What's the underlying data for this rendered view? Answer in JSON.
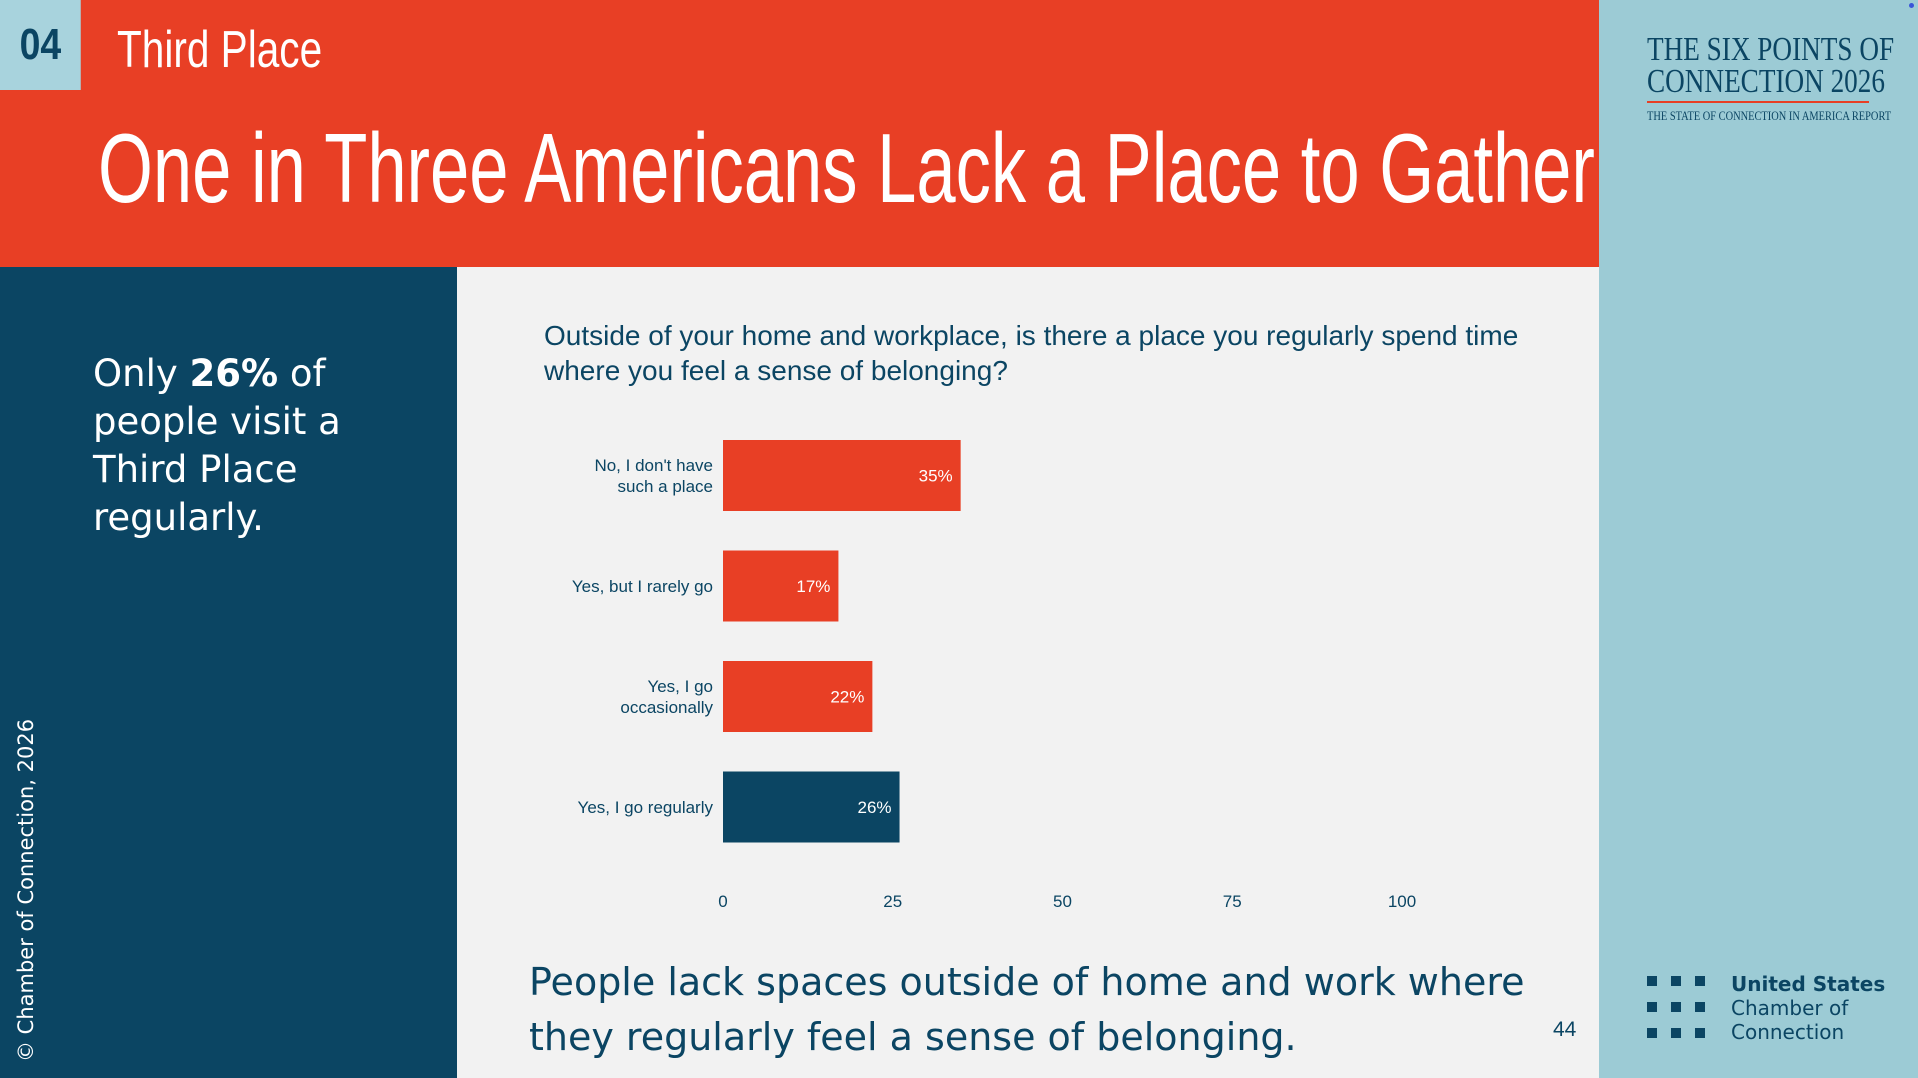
{
  "header": {
    "section_number": "04",
    "section_title": "Third Place",
    "title": "One in Three Americans Lack a Place to Gather"
  },
  "brand": {
    "title_line1": "THE SIX POINTS OF",
    "title_line2": "CONNECTION 2026",
    "subtitle": "THE STATE OF CONNECTION IN AMERICA REPORT",
    "logo_line1": "United States",
    "logo_line2": "Chamber of",
    "logo_line3": "Connection",
    "accent_color": "#e83f25",
    "navy_color": "#0b4563"
  },
  "callout": {
    "prefix": "Only ",
    "highlight": "26%",
    "suffix": " of people visit a Third Place regularly."
  },
  "copyright": "© Chamber of Connection, 2026",
  "question": "Outside of your home and workplace, is there a place you regularly spend time where you feel a sense of belonging?",
  "takeaway": "People lack spaces outside of home and work where they regularly feel a sense of belonging.",
  "page_number": "44",
  "chart_data": {
    "type": "bar",
    "orientation": "horizontal",
    "categories": [
      [
        "No, I don't have",
        "such a place"
      ],
      [
        "Yes, but I rarely go"
      ],
      [
        "Yes, I go",
        "occasionally"
      ],
      [
        "Yes, I go regularly"
      ]
    ],
    "values": [
      35,
      17,
      22,
      26
    ],
    "data_labels": [
      "35%",
      "17%",
      "22%",
      "26%"
    ],
    "colors": [
      "#e83f25",
      "#e83f25",
      "#e83f25",
      "#0b4563"
    ],
    "xlim": [
      0,
      100
    ],
    "xticks": [
      "0",
      "25",
      "50",
      "75",
      "100"
    ],
    "grid": false
  }
}
